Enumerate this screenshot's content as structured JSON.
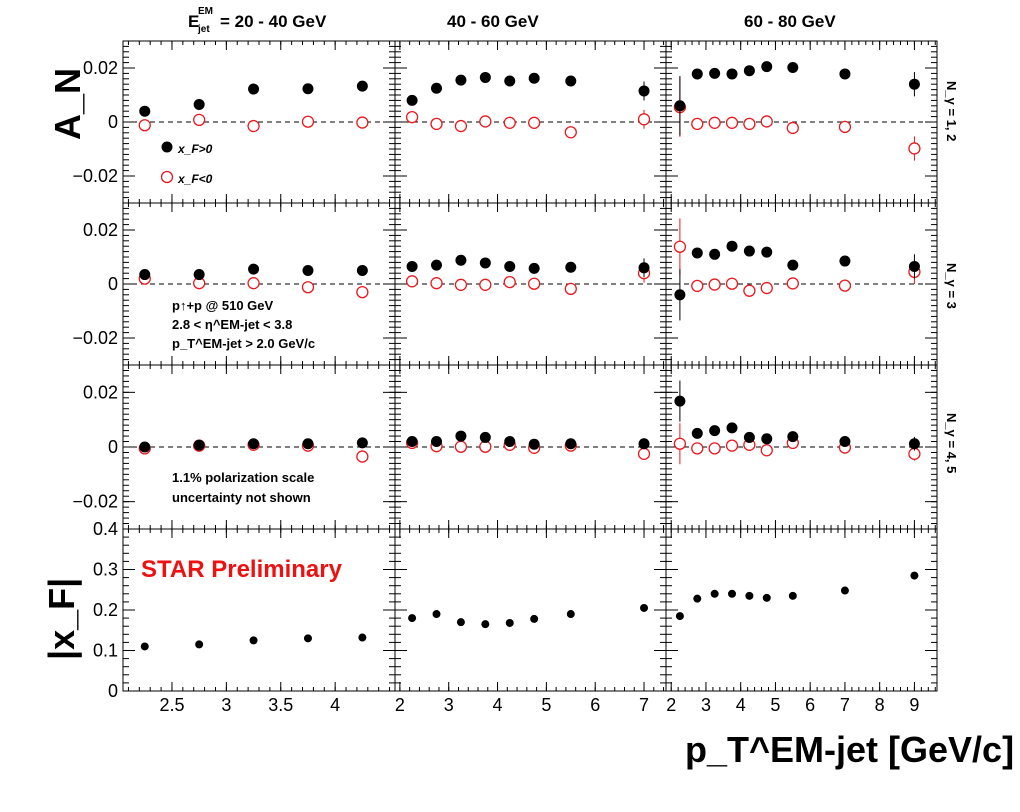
{
  "header": {
    "col1_label": "= 20 - 40 GeV",
    "col1_symbol": "E",
    "col1_sup": "EM",
    "col1_sub": "jet",
    "col2_label": "40 - 60 GeV",
    "col3_label": "60 - 80 GeV"
  },
  "row_labels": [
    "N_γ = 1, 2",
    "N_γ = 3",
    "N_γ = 4, 5"
  ],
  "ylabel_top": "A_N",
  "ylabel_bottom": "|x_F|",
  "xlabel": "p_T^EM-jet [GeV/c]",
  "legend": {
    "pos": "x_F>0",
    "neg": "x_F<0"
  },
  "annotations": {
    "collision": "p↑+p @ 510 GeV",
    "eta": "2.8 < η^EM-jet < 3.8",
    "pt": "p_T^EM-jet > 2.0 GeV/c",
    "pol1": "1.1% polarization scale",
    "pol2": "uncertainty not shown",
    "preliminary": "STAR Preliminary"
  },
  "colors": {
    "pos": "#000000",
    "neg": "#e8191e",
    "preliminary": "#ee1111"
  },
  "chart_data": {
    "type": "scatter",
    "title": "",
    "xlabel": "p_T^EM-jet [GeV/c]",
    "ylabel": "A_N",
    "an_ylim": [
      -0.03,
      0.03
    ],
    "xf_ylim": [
      0,
      0.4
    ],
    "an_yticks": [
      0.02,
      0,
      -0.02
    ],
    "an_ytick_labels": [
      "0.02",
      "0",
      "−0.02"
    ],
    "xf_yticks": [
      0,
      0.1,
      0.2,
      0.3,
      0.4
    ],
    "xf_ytick_labels": [
      "0",
      "0.1",
      "0.2",
      "0.3",
      "0.4"
    ],
    "columns": [
      {
        "energy_range": "20 - 40 GeV",
        "xlim": [
          2.05,
          4.55
        ],
        "xticks": [
          2.5,
          3,
          3.5,
          4
        ],
        "xtick_labels": [
          "2.5",
          "3",
          "3.5",
          "4"
        ],
        "x": [
          2.25,
          2.75,
          3.25,
          3.75,
          4.25
        ],
        "rows": [
          {
            "photon_multiplicity": "1, 2",
            "pos": {
              "y": [
                0.004,
                0.0065,
                0.0122,
                0.0123,
                0.0133
              ],
              "err": [
                0.0012,
                0.0012,
                0.0012,
                0.0012,
                0.0015
              ]
            },
            "neg": {
              "y": [
                -0.0012,
                0.0008,
                -0.0015,
                0.0001,
                -0.0002
              ],
              "err": [
                0.0012,
                0.0012,
                0.0012,
                0.0012,
                0.0015
              ]
            }
          },
          {
            "photon_multiplicity": "3",
            "pos": {
              "y": [
                0.0035,
                0.0035,
                0.0055,
                0.005,
                0.005
              ],
              "err": [
                0.0012,
                0.0012,
                0.0012,
                0.0012,
                0.002
              ]
            },
            "neg": {
              "y": [
                0.002,
                0.0003,
                0.0003,
                -0.0012,
                -0.003
              ],
              "err": [
                0.0012,
                0.0012,
                0.0012,
                0.0012,
                0.002
              ]
            }
          },
          {
            "photon_multiplicity": "4, 5",
            "pos": {
              "y": [
                0.0,
                0.0007,
                0.0012,
                0.0012,
                0.0015
              ],
              "err": [
                0.0012,
                0.0012,
                0.0012,
                0.0012,
                0.0015
              ]
            },
            "neg": {
              "y": [
                -0.0005,
                0.0005,
                0.0008,
                0.0005,
                -0.0035
              ],
              "err": [
                0.0012,
                0.0012,
                0.0012,
                0.0012,
                0.0018
              ]
            }
          }
        ],
        "xf": [
          0.11,
          0.115,
          0.125,
          0.13,
          0.132
        ]
      },
      {
        "energy_range": "40 - 60 GeV",
        "xlim": [
          1.9,
          7.45
        ],
        "xticks": [
          2,
          3,
          4,
          5,
          6,
          7
        ],
        "xtick_labels": [
          "2",
          "3",
          "4",
          "5",
          "6",
          "7"
        ],
        "x": [
          2.25,
          2.75,
          3.25,
          3.75,
          4.25,
          4.75,
          5.5,
          7.0
        ],
        "rows": [
          {
            "photon_multiplicity": "1, 2",
            "pos": {
              "y": [
                0.008,
                0.0125,
                0.0155,
                0.0165,
                0.0152,
                0.0162,
                0.0152,
                0.0115
              ],
              "err": [
                0.0012,
                0.0012,
                0.0012,
                0.0012,
                0.0012,
                0.0012,
                0.0012,
                0.0035
              ]
            },
            "neg": {
              "y": [
                0.0018,
                -0.0007,
                -0.0015,
                0.0002,
                -0.0003,
                -0.0003,
                -0.0038,
                0.001
              ],
              "err": [
                0.0012,
                0.0012,
                0.0012,
                0.0012,
                0.0012,
                0.0012,
                0.0012,
                0.0035
              ]
            }
          },
          {
            "photon_multiplicity": "3",
            "pos": {
              "y": [
                0.0065,
                0.007,
                0.0088,
                0.0078,
                0.0065,
                0.0058,
                0.0062,
                0.006
              ],
              "err": [
                0.0012,
                0.0012,
                0.0012,
                0.0012,
                0.0012,
                0.0012,
                0.0012,
                0.0035
              ]
            },
            "neg": {
              "y": [
                0.001,
                0.0003,
                -0.0003,
                -0.0003,
                0.0007,
                0.0001,
                -0.0018,
                0.004
              ],
              "err": [
                0.0012,
                0.0012,
                0.0012,
                0.0012,
                0.0012,
                0.0012,
                0.0012,
                0.0035
              ]
            }
          },
          {
            "photon_multiplicity": "4, 5",
            "pos": {
              "y": [
                0.002,
                0.002,
                0.004,
                0.0035,
                0.002,
                0.001,
                0.0012,
                0.0012
              ],
              "err": [
                0.0012,
                0.0012,
                0.0012,
                0.0012,
                0.0012,
                0.0012,
                0.0012,
                0.002
              ]
            },
            "neg": {
              "y": [
                0.0015,
                0.0003,
                0.0001,
                0.0001,
                0.0008,
                -0.0003,
                0.0005,
                -0.0025
              ],
              "err": [
                0.0012,
                0.0012,
                0.0012,
                0.0012,
                0.0012,
                0.0012,
                0.0012,
                0.002
              ]
            }
          }
        ],
        "xf": [
          0.18,
          0.19,
          0.17,
          0.165,
          0.168,
          0.178,
          0.19,
          0.205
        ]
      },
      {
        "energy_range": "60 - 80 GeV",
        "xlim": [
          1.85,
          9.65
        ],
        "xticks": [
          2,
          3,
          4,
          5,
          6,
          7,
          8,
          9
        ],
        "xtick_labels": [
          "2",
          "3",
          "4",
          "5",
          "6",
          "7",
          "8",
          "9"
        ],
        "x": [
          2.25,
          2.75,
          3.25,
          3.75,
          4.25,
          4.75,
          5.5,
          7.0,
          9.0
        ],
        "rows": [
          {
            "photon_multiplicity": "1, 2",
            "pos": {
              "y": [
                0.006,
                0.0178,
                0.018,
                0.0178,
                0.019,
                0.0205,
                0.0202,
                0.0178,
                0.014
              ],
              "err": [
                0.011,
                0.0018,
                0.0015,
                0.0012,
                0.0012,
                0.0012,
                0.0012,
                0.0015,
                0.0045
              ]
            },
            "neg": {
              "y": [
                0.0055,
                -0.0007,
                -0.0003,
                -0.0003,
                -0.0007,
                0.0002,
                -0.0022,
                -0.0018,
                -0.0098
              ],
              "err": [
                0.011,
                0.0018,
                0.0015,
                0.0012,
                0.0012,
                0.0012,
                0.0012,
                0.0015,
                0.0045
              ]
            }
          },
          {
            "photon_multiplicity": "3",
            "pos": {
              "y": [
                -0.004,
                0.0115,
                0.011,
                0.014,
                0.0122,
                0.0118,
                0.007,
                0.0085,
                0.0065
              ],
              "err": [
                0.0095,
                0.0018,
                0.0015,
                0.0012,
                0.0012,
                0.0012,
                0.0012,
                0.0015,
                0.0045
              ]
            },
            "neg": {
              "y": [
                0.0138,
                -0.0007,
                -0.0002,
                0.0001,
                -0.0025,
                -0.0015,
                0.0002,
                -0.0006,
                0.0045
              ],
              "err": [
                0.0105,
                0.0018,
                0.0015,
                0.0012,
                0.0012,
                0.0012,
                0.0012,
                0.0015,
                0.0045
              ]
            }
          },
          {
            "photon_multiplicity": "4, 5",
            "pos": {
              "y": [
                0.0168,
                0.005,
                0.006,
                0.007,
                0.0035,
                0.003,
                0.0038,
                0.002,
                0.0012
              ],
              "err": [
                0.0075,
                0.0015,
                0.0012,
                0.0012,
                0.0012,
                0.0012,
                0.0012,
                0.0012,
                0.0025
              ]
            },
            "neg": {
              "y": [
                0.0012,
                -0.0005,
                -0.0005,
                0.0005,
                0.0008,
                -0.0012,
                0.0015,
                -0.0002,
                -0.0025
              ],
              "err": [
                0.0075,
                0.0015,
                0.0012,
                0.0012,
                0.0012,
                0.0012,
                0.0012,
                0.0012,
                0.0025
              ]
            }
          }
        ],
        "xf": [
          0.185,
          0.228,
          0.24,
          0.24,
          0.235,
          0.23,
          0.235,
          0.248,
          0.285
        ]
      }
    ]
  }
}
